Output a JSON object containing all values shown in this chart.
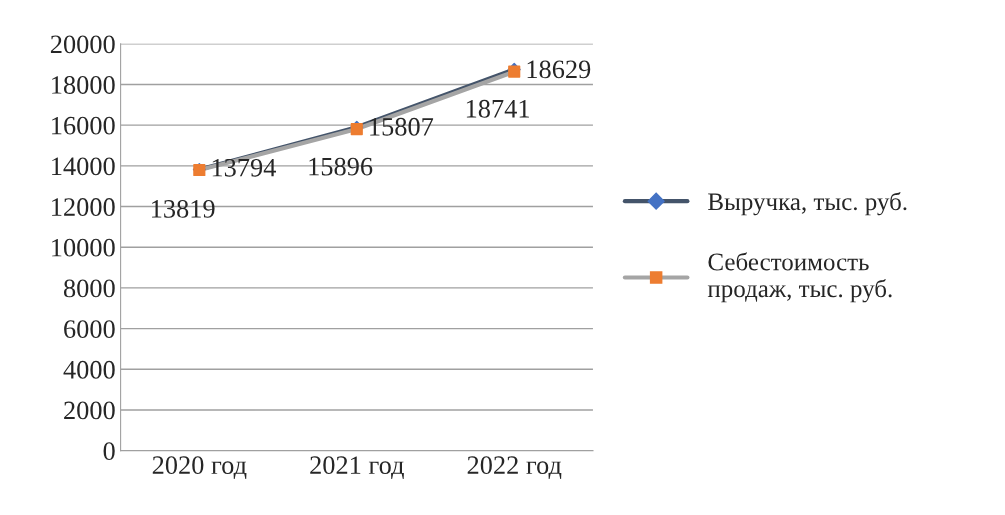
{
  "chart_data": {
    "type": "line",
    "categories": [
      "2020 год",
      "2021 год",
      "2022 год"
    ],
    "series": [
      {
        "name": "Выручка, тыс. руб.",
        "color": "#44546a",
        "colors": [
          "#4472c4",
          "#4472c4",
          "#4472c4"
        ],
        "marker": "diamond",
        "values": [
          13819,
          15896,
          18741
        ]
      },
      {
        "name": "Себестоимость\nпродаж, тыс. руб.",
        "color": "#a5a5a5",
        "colors": [
          "#ed7d31",
          "#ed7d31",
          "#ed7d31"
        ],
        "marker": "square",
        "values": [
          13794,
          15807,
          18629
        ]
      }
    ],
    "ylim": [
      0,
      20000
    ],
    "yticks": [
      0,
      2000,
      4000,
      6000,
      8000,
      10000,
      12000,
      14000,
      16000,
      18000,
      20000
    ],
    "grid": "y",
    "legend": "right",
    "data_labels": true,
    "line_style": "solid"
  }
}
